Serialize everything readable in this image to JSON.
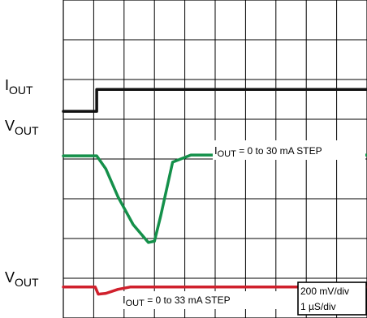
{
  "chart_data": {
    "type": "line",
    "title": "",
    "xlabel": "",
    "ylabel": "",
    "grid": true,
    "grid_divisions": {
      "x": 10,
      "y": 8
    },
    "scale": {
      "volts": "200 mV/div",
      "time": "1 µS/div"
    },
    "channel_labels": [
      {
        "main": "I",
        "sub": "OUT"
      },
      {
        "main": "V",
        "sub": "OUT"
      },
      {
        "main": "V",
        "sub": "OUT"
      }
    ],
    "annotations": [
      {
        "pre": "I",
        "sub": "OUT",
        "post": " = 0 to 30 mA STEP"
      },
      {
        "pre": "I",
        "sub": "OUT",
        "post": " = 0 to 33 mA STEP"
      }
    ],
    "series": [
      {
        "color": "#111111",
        "x": [
          0,
          1.1,
          1.1,
          10
        ],
        "y": [
          5.2,
          5.2,
          5.75,
          5.75
        ]
      },
      {
        "color": "#14904a",
        "x": [
          0,
          1.1,
          1.4,
          1.8,
          2.3,
          2.8,
          3.0,
          3.2,
          3.6,
          4.2,
          10
        ],
        "y": [
          4.08,
          4.08,
          3.75,
          3.05,
          2.35,
          1.9,
          1.93,
          2.55,
          3.92,
          4.1,
          4.1
        ]
      },
      {
        "color": "#d0202c",
        "x": [
          0,
          1.05,
          1.15,
          1.4,
          1.8,
          2.2,
          10
        ],
        "y": [
          0.78,
          0.78,
          0.6,
          0.62,
          0.72,
          0.78,
          0.78
        ]
      }
    ]
  }
}
